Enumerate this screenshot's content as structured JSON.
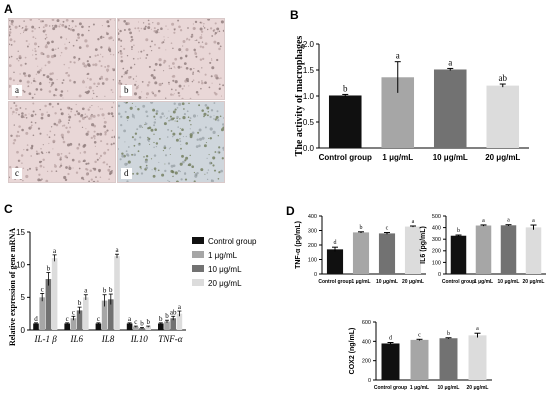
{
  "panels": {
    "A": {
      "label": "A",
      "images": [
        "a",
        "b",
        "c",
        "d"
      ]
    },
    "B": {
      "label": "B"
    },
    "C": {
      "label": "C"
    },
    "D": {
      "label": "D"
    }
  },
  "colors": {
    "control": "#101010",
    "dose1": "#a6a6a6",
    "dose10": "#727272",
    "dose20": "#dcdcdc",
    "micro_pink": "#e9d7d7",
    "micro_blue": "#cfd6dc"
  },
  "chart_data": [
    {
      "id": "B",
      "type": "bar",
      "title": "",
      "ylabel": "The activity of macrophages",
      "ylim": [
        0,
        2.0
      ],
      "yticks": [
        "0.0",
        "0.5",
        "1.0",
        "1.5",
        "2.0"
      ],
      "categories": [
        "Control group",
        "1 μg/mL",
        "10 μg/mL",
        "20 μg/mL"
      ],
      "values": [
        1.01,
        1.36,
        1.51,
        1.2
      ],
      "errors": [
        0.02,
        0.3,
        0.02,
        0.03
      ],
      "letters": [
        "b",
        "a",
        "a",
        "ab"
      ]
    },
    {
      "id": "C",
      "type": "bar",
      "ylabel": "Relative expression of gene mRNA",
      "ylim": [
        0,
        15
      ],
      "yticks": [
        "0",
        "5",
        "10",
        "15"
      ],
      "categories": [
        "IL-1 β",
        "IL6",
        "IL8",
        "IL10",
        "TNF-α"
      ],
      "legend": [
        "Control group",
        "1 μg/mL",
        "10 μg/mL",
        "20 μg/mL"
      ],
      "series": [
        {
          "name": "Control group",
          "values": [
            1.0,
            1.0,
            1.0,
            1.0,
            1.0
          ],
          "errors": [
            0.1,
            0.1,
            0.1,
            0.1,
            0.1
          ],
          "letters": [
            "d",
            "c",
            "c",
            "a",
            "b"
          ]
        },
        {
          "name": "1 μg/mL",
          "values": [
            5.0,
            1.8,
            4.5,
            0.5,
            1.3
          ],
          "errors": [
            0.6,
            0.3,
            0.9,
            0.1,
            0.2
          ],
          "letters": [
            "c",
            "c",
            "b",
            "c",
            "b"
          ]
        },
        {
          "name": "10 μg/mL",
          "values": [
            7.8,
            3.0,
            4.7,
            0.3,
            1.8
          ],
          "errors": [
            1.0,
            0.5,
            0.8,
            0.1,
            0.3
          ],
          "letters": [
            "b",
            "b",
            "b",
            "b",
            "ab"
          ]
        },
        {
          "name": "20 μg/mL",
          "values": [
            11.0,
            5.0,
            11.3,
            0.5,
            2.5
          ],
          "errors": [
            0.5,
            0.4,
            0.3,
            0.1,
            0.4
          ],
          "letters": [
            "a",
            "a",
            "a",
            "b",
            "a"
          ]
        }
      ]
    },
    {
      "id": "D1",
      "type": "bar",
      "ylabel": "TNF-α (pg/mL)",
      "ylim": [
        0,
        400
      ],
      "yticks": [
        "0",
        "100",
        "200",
        "300",
        "400"
      ],
      "categories": [
        "Control group",
        "1 μg/mL",
        "10 μg/mL",
        "20 μg/mL"
      ],
      "values": [
        170,
        287,
        280,
        327
      ],
      "errors": [
        15,
        4,
        6,
        4
      ],
      "letters": [
        "d",
        "b",
        "c",
        "a"
      ]
    },
    {
      "id": "D2",
      "type": "bar",
      "ylabel": "IL6 (pg/mL)",
      "ylim": [
        0,
        500
      ],
      "yticks": [
        "0",
        "100",
        "200",
        "300",
        "400",
        "500"
      ],
      "categories": [
        "Control group",
        "1 μg/mL",
        "10 μg/mL",
        "20 μg/mL"
      ],
      "values": [
        330,
        418,
        420,
        402
      ],
      "errors": [
        6,
        5,
        5,
        20
      ],
      "letters": [
        "b",
        "a",
        "a",
        "a"
      ]
    },
    {
      "id": "D3",
      "type": "bar",
      "ylabel": "COX2 (ng/mL)",
      "ylim": [
        0,
        600
      ],
      "yticks": [
        "0",
        "200",
        "400",
        "600"
      ],
      "categories": [
        "Control group",
        "1 μg/mL",
        "10 μg/mL",
        "20 μg/mL"
      ],
      "values": [
        378,
        415,
        432,
        462
      ],
      "errors": [
        10,
        6,
        5,
        22
      ],
      "letters": [
        "d",
        "c",
        "b",
        "a"
      ]
    }
  ]
}
